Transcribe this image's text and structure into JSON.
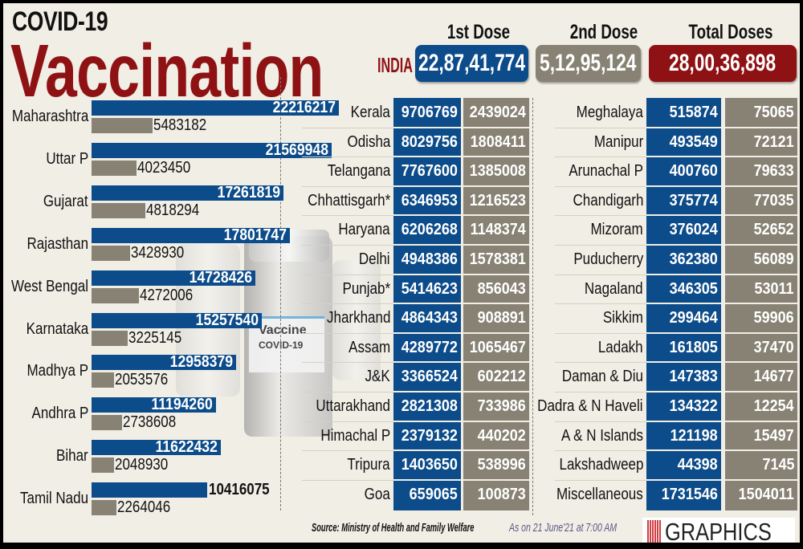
{
  "header": {
    "title_small": "COVID-19",
    "title_big": "Vaccination",
    "india_label": "INDIA",
    "dose1_label": "1st Dose",
    "dose2_label": "2nd Dose",
    "total_label": "Total Doses",
    "india_dose1": "22,87,41,774",
    "india_dose2": "5,12,95,124",
    "india_total": "28,00,36,898",
    "vial_label_1": "Vaccine",
    "vial_label_2": "COVID-19"
  },
  "colors": {
    "dose1": "#0d4c8a",
    "dose2": "#878274",
    "total": "#8e1214",
    "title": "#8e1214",
    "background": "#f1eee5"
  },
  "chart_data": {
    "type": "bar",
    "orientation": "horizontal",
    "categories": [
      "Maharashtra",
      "Uttar P",
      "Gujarat",
      "Rajasthan",
      "West Bengal",
      "Karnataka",
      "Madhya P",
      "Andhra P",
      "Bihar",
      "Tamil Nadu"
    ],
    "series": [
      {
        "name": "1st Dose",
        "color": "#0d4c8a",
        "values": [
          22216217,
          21569948,
          17261819,
          17801747,
          14728426,
          15257540,
          12958379,
          11194260,
          11622432,
          10416075
        ],
        "labels": [
          "22216217",
          "21569948",
          "17261819",
          "17801747",
          "14728426",
          "15257540",
          "12958379",
          "11194260",
          "11622432",
          "10416075"
        ]
      },
      {
        "name": "2nd Dose",
        "color": "#878274",
        "values": [
          5483182,
          4023450,
          4818294,
          3428930,
          4272006,
          3225145,
          2053576,
          2738608,
          2048930,
          2264046
        ],
        "labels": [
          "5483182",
          "4023450",
          "4818294",
          "3428930",
          "4272006",
          "3225145",
          "2053576",
          "2738608",
          "2048930",
          "2264046"
        ]
      }
    ],
    "grid": false,
    "legend": "none"
  },
  "table_middle": [
    {
      "state": "Kerala",
      "dose1": "9706769",
      "dose2": "2439024"
    },
    {
      "state": "Odisha",
      "dose1": "8029756",
      "dose2": "1808411"
    },
    {
      "state": "Telangana",
      "dose1": "7767600",
      "dose2": "1385008"
    },
    {
      "state": "Chhattisgarh*",
      "dose1": "6346953",
      "dose2": "1216523"
    },
    {
      "state": "Haryana",
      "dose1": "6206268",
      "dose2": "1148374"
    },
    {
      "state": "Delhi",
      "dose1": "4948386",
      "dose2": "1578381"
    },
    {
      "state": "Punjab*",
      "dose1": "5414623",
      "dose2": "856043"
    },
    {
      "state": "Jharkhand",
      "dose1": "4864343",
      "dose2": "908891"
    },
    {
      "state": "Assam",
      "dose1": "4289772",
      "dose2": "1065467"
    },
    {
      "state": "J&K",
      "dose1": "3366524",
      "dose2": "602212"
    },
    {
      "state": "Uttarakhand",
      "dose1": "2821308",
      "dose2": "733986"
    },
    {
      "state": "Himachal P",
      "dose1": "2379132",
      "dose2": "440202"
    },
    {
      "state": "Tripura",
      "dose1": "1403650",
      "dose2": "538996"
    },
    {
      "state": "Goa",
      "dose1": "659065",
      "dose2": "100873"
    }
  ],
  "table_right": [
    {
      "state": "Meghalaya",
      "dose1": "515874",
      "dose2": "75065"
    },
    {
      "state": "Manipur",
      "dose1": "493549",
      "dose2": "72121"
    },
    {
      "state": "Arunachal P",
      "dose1": "400760",
      "dose2": "79633"
    },
    {
      "state": "Chandigarh",
      "dose1": "375774",
      "dose2": "77035"
    },
    {
      "state": "Mizoram",
      "dose1": "376024",
      "dose2": "52652"
    },
    {
      "state": "Puducherry",
      "dose1": "362380",
      "dose2": "56089"
    },
    {
      "state": "Nagaland",
      "dose1": "346305",
      "dose2": "53011"
    },
    {
      "state": "Sikkim",
      "dose1": "299464",
      "dose2": "59906"
    },
    {
      "state": "Ladakh",
      "dose1": "161805",
      "dose2": "37470"
    },
    {
      "state": "Daman & Diu",
      "dose1": "147383",
      "dose2": "14677"
    },
    {
      "state": "Dadra & N Haveli",
      "dose1": "134322",
      "dose2": "12254"
    },
    {
      "state": "A & N Islands",
      "dose1": "121198",
      "dose2": "15497"
    },
    {
      "state": "Lakshadweep",
      "dose1": "44398",
      "dose2": "7145"
    },
    {
      "state": "Miscellaneous",
      "dose1": "1731546",
      "dose2": "1504011"
    }
  ],
  "footer": {
    "source": "Source: Ministry of Health and Family Welfare",
    "as_of": "As on 21 June'21 at 7:00 AM",
    "logo_mark": "PTI",
    "logo_text": "GRAPHICS"
  }
}
